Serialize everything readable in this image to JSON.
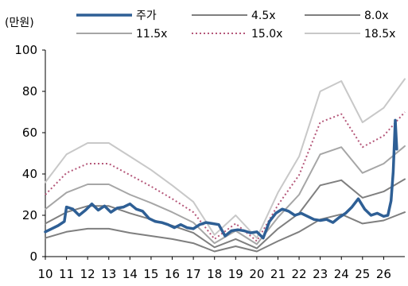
{
  "chart_data": {
    "type": "line",
    "unit_label": "(만원)",
    "title": "",
    "xlabel": "",
    "ylabel": "",
    "ylim": [
      0,
      100
    ],
    "y_ticks": [
      0,
      20,
      40,
      60,
      80,
      100
    ],
    "x_ticks": [
      "10",
      "11",
      "12",
      "13",
      "14",
      "15",
      "16",
      "17",
      "18",
      "19",
      "20",
      "21",
      "22",
      "23",
      "24",
      "25",
      "26"
    ],
    "xlim": [
      10,
      27
    ],
    "grid": false,
    "legend_position": "top",
    "band_x": [
      10,
      11,
      12,
      13,
      14,
      15,
      16,
      17,
      18,
      19,
      20,
      21,
      22,
      23,
      24,
      25,
      26,
      27
    ],
    "series": [
      {
        "name": "4.5x",
        "color": "#7f7f7f",
        "width": 2,
        "values": [
          9,
          12,
          13.5,
          13.5,
          11.5,
          10,
          8.5,
          6.5,
          2.5,
          5,
          2.5,
          7.5,
          12,
          18,
          20.5,
          16,
          17.5,
          21.5
        ]
      },
      {
        "name": "8.0x",
        "color": "#7f7f7f",
        "width": 2,
        "values": [
          16,
          21.5,
          24.5,
          24.5,
          21,
          18,
          15,
          11.5,
          4.5,
          8.5,
          4,
          13.5,
          21,
          34.5,
          37,
          28.5,
          31.5,
          37.5
        ]
      },
      {
        "name": "11.5x",
        "color": "#a6a6a6",
        "width": 2,
        "values": [
          23,
          31,
          35,
          35,
          30,
          26,
          21.5,
          16.5,
          6.5,
          12.5,
          6,
          19,
          30,
          49.5,
          53,
          40.5,
          45,
          53.5
        ]
      },
      {
        "name": "15.0x",
        "color": "#b5587a",
        "width": 2,
        "dash": "2 3",
        "values": [
          30,
          40.5,
          45,
          45,
          39.5,
          34,
          28,
          21.5,
          8.5,
          16,
          7.5,
          25,
          39.5,
          65,
          69,
          53,
          58.5,
          70
        ]
      },
      {
        "name": "18.5x",
        "color": "#c8c8c8",
        "width": 2,
        "values": [
          36,
          49.5,
          55,
          55,
          48.5,
          42,
          34.5,
          26.5,
          10.5,
          20,
          9,
          31,
          48.5,
          80,
          85,
          65,
          72,
          86
        ]
      },
      {
        "name": "주가",
        "color": "#2e5f95",
        "width": 3.5,
        "x": [
          10.0,
          10.3,
          10.6,
          10.9,
          11.0,
          11.3,
          11.6,
          11.9,
          12.2,
          12.5,
          12.8,
          13.1,
          13.4,
          13.7,
          14.0,
          14.3,
          14.6,
          14.9,
          15.2,
          15.5,
          15.8,
          16.1,
          16.4,
          16.7,
          17.0,
          17.3,
          17.6,
          17.9,
          18.2,
          18.5,
          18.8,
          19.1,
          19.4,
          19.7,
          20.0,
          20.3,
          20.6,
          20.9,
          21.2,
          21.5,
          21.8,
          22.1,
          22.4,
          22.7,
          23.0,
          23.3,
          23.6,
          23.9,
          24.2,
          24.5,
          24.8,
          25.1,
          25.4,
          25.7,
          26.0,
          26.2,
          26.35,
          26.45,
          26.55,
          26.62
        ],
        "values": [
          12,
          13.5,
          15,
          17,
          24,
          23,
          20,
          22.5,
          25.5,
          22.5,
          24.5,
          21.5,
          23.5,
          24,
          25.5,
          23,
          22,
          18.5,
          17,
          16.5,
          15.5,
          14,
          15.5,
          14,
          13.5,
          15.5,
          16.5,
          16,
          15.5,
          10,
          12.5,
          13,
          12.5,
          11.5,
          12,
          9,
          17,
          21,
          23,
          22,
          20,
          21,
          19.5,
          18,
          17.5,
          18,
          16.5,
          19,
          21,
          24,
          28,
          23,
          20,
          21,
          19.5,
          20,
          27,
          41,
          66,
          52
        ]
      }
    ]
  }
}
